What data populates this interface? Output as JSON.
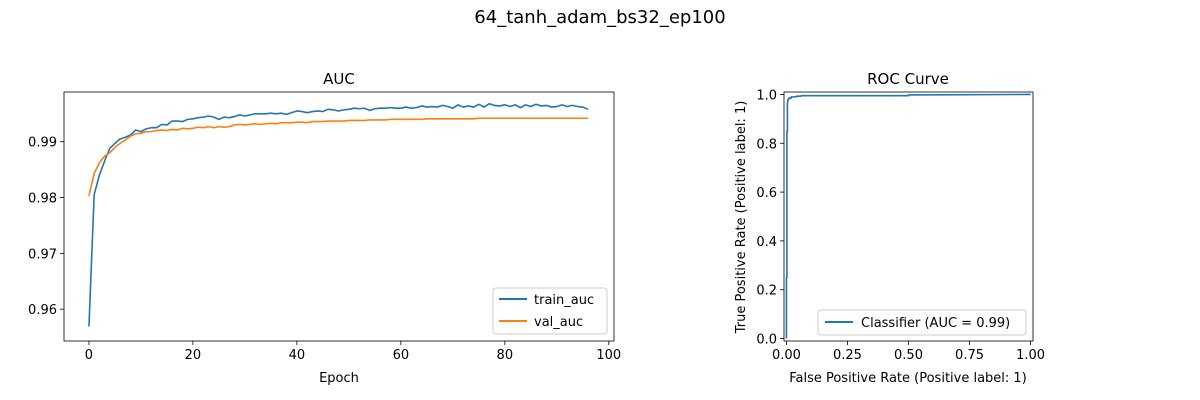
{
  "figure": {
    "suptitle": "64_tanh_adam_bs32_ep100"
  },
  "chart_data": [
    {
      "type": "line",
      "title": "AUC",
      "xlabel": "Epoch",
      "ylabel": "",
      "xlim": [
        -4.8,
        101
      ],
      "ylim": [
        0.9543,
        0.9989
      ],
      "xticks": [
        0,
        20,
        40,
        60,
        80,
        100
      ],
      "yticks": [
        0.96,
        0.97,
        0.98,
        0.99
      ],
      "ytick_labels": [
        "0.96",
        "0.97",
        "0.98",
        "0.99"
      ],
      "grid": false,
      "legend_position": "lower-right",
      "series": [
        {
          "name": "train_auc",
          "color": "#1f77b4",
          "x": [
            0,
            1,
            2,
            3,
            4,
            5,
            6,
            7,
            8,
            9,
            10,
            11,
            12,
            13,
            14,
            15,
            16,
            17,
            18,
            19,
            20,
            21,
            22,
            23,
            24,
            25,
            26,
            27,
            28,
            29,
            30,
            31,
            32,
            33,
            34,
            35,
            36,
            37,
            38,
            39,
            40,
            41,
            42,
            43,
            44,
            45,
            46,
            47,
            48,
            49,
            50,
            51,
            52,
            53,
            54,
            55,
            56,
            57,
            58,
            59,
            60,
            61,
            62,
            63,
            64,
            65,
            66,
            67,
            68,
            69,
            70,
            71,
            72,
            73,
            74,
            75,
            76,
            77,
            78,
            79,
            80,
            81,
            82,
            83,
            84,
            85,
            86,
            87,
            88,
            89,
            90,
            91,
            92,
            93,
            94,
            95,
            96
          ],
          "values": [
            0.9569,
            0.9805,
            0.984,
            0.9865,
            0.9888,
            0.9897,
            0.9905,
            0.9908,
            0.9912,
            0.9921,
            0.9918,
            0.9923,
            0.9925,
            0.9925,
            0.9931,
            0.993,
            0.9937,
            0.9937,
            0.9936,
            0.994,
            0.9941,
            0.9943,
            0.9944,
            0.9946,
            0.9944,
            0.994,
            0.9944,
            0.9943,
            0.9945,
            0.9948,
            0.9946,
            0.9948,
            0.995,
            0.995,
            0.995,
            0.9951,
            0.995,
            0.9951,
            0.9949,
            0.9952,
            0.9955,
            0.9954,
            0.9952,
            0.9954,
            0.9955,
            0.9954,
            0.9958,
            0.9957,
            0.9955,
            0.9957,
            0.9958,
            0.996,
            0.9959,
            0.996,
            0.9956,
            0.9959,
            0.996,
            0.996,
            0.9961,
            0.996,
            0.996,
            0.9962,
            0.996,
            0.9961,
            0.9964,
            0.9962,
            0.9963,
            0.9962,
            0.9965,
            0.9963,
            0.996,
            0.9966,
            0.9962,
            0.9964,
            0.9962,
            0.9967,
            0.9962,
            0.9968,
            0.9965,
            0.9964,
            0.9966,
            0.9963,
            0.9966,
            0.9961,
            0.9966,
            0.9963,
            0.9967,
            0.9964,
            0.9965,
            0.9962,
            0.9963,
            0.9966,
            0.9963,
            0.9965,
            0.9963,
            0.9962,
            0.9958
          ]
        },
        {
          "name": "val_auc",
          "color": "#ff7f0e",
          "x": [
            0,
            1,
            2,
            3,
            4,
            5,
            6,
            7,
            8,
            9,
            10,
            11,
            12,
            13,
            14,
            15,
            16,
            17,
            18,
            19,
            20,
            21,
            22,
            23,
            24,
            25,
            26,
            27,
            28,
            29,
            30,
            31,
            32,
            33,
            34,
            35,
            36,
            37,
            38,
            39,
            40,
            41,
            42,
            43,
            44,
            45,
            46,
            47,
            48,
            49,
            50,
            51,
            52,
            53,
            54,
            55,
            56,
            57,
            58,
            59,
            60,
            61,
            62,
            63,
            64,
            65,
            66,
            67,
            68,
            69,
            70,
            71,
            72,
            73,
            74,
            75,
            76,
            77,
            78,
            79,
            80,
            81,
            82,
            83,
            84,
            85,
            86,
            87,
            88,
            89,
            90,
            91,
            92,
            93,
            94,
            95,
            96
          ],
          "values": [
            0.9803,
            0.9843,
            0.9862,
            0.9874,
            0.988,
            0.989,
            0.9897,
            0.9903,
            0.991,
            0.9914,
            0.9915,
            0.9918,
            0.9918,
            0.992,
            0.9921,
            0.992,
            0.9922,
            0.9921,
            0.9924,
            0.9923,
            0.9924,
            0.9926,
            0.9925,
            0.9927,
            0.9925,
            0.9927,
            0.9926,
            0.9927,
            0.993,
            0.9931,
            0.993,
            0.9931,
            0.9932,
            0.9931,
            0.9932,
            0.9933,
            0.9932,
            0.9934,
            0.9934,
            0.9934,
            0.9935,
            0.9935,
            0.9934,
            0.9936,
            0.9936,
            0.9936,
            0.9937,
            0.9937,
            0.9937,
            0.9937,
            0.9938,
            0.9938,
            0.9938,
            0.9938,
            0.9939,
            0.9939,
            0.9939,
            0.9939,
            0.994,
            0.994,
            0.994,
            0.994,
            0.994,
            0.994,
            0.994,
            0.9941,
            0.9941,
            0.9941,
            0.9941,
            0.9941,
            0.9941,
            0.9941,
            0.9941,
            0.9941,
            0.9941,
            0.9942,
            0.9942,
            0.9942,
            0.9942,
            0.9942,
            0.9942,
            0.9942,
            0.9942,
            0.9942,
            0.9942,
            0.9942,
            0.9942,
            0.9942,
            0.9942,
            0.9942,
            0.9942,
            0.9942,
            0.9942,
            0.9942,
            0.9942,
            0.9942,
            0.9942
          ]
        }
      ]
    },
    {
      "type": "line",
      "title": "ROC Curve",
      "xlabel": "False Positive Rate (Positive label: 1)",
      "ylabel": "True Positive Rate (Positive label: 1)",
      "xlim": [
        -0.01,
        1.01
      ],
      "ylim": [
        -0.01,
        1.01
      ],
      "xticks": [
        0,
        0.25,
        0.5,
        0.75,
        1.0
      ],
      "xtick_labels": [
        "0.00",
        "0.25",
        "0.50",
        "0.75",
        "1.00"
      ],
      "yticks": [
        0,
        0.2,
        0.4,
        0.6,
        0.8,
        1.0
      ],
      "ytick_labels": [
        "0.0",
        "0.2",
        "0.4",
        "0.6",
        "0.8",
        "1.0"
      ],
      "grid": false,
      "legend_position": "lower-right",
      "series": [
        {
          "name": "Classifier (AUC = 0.99)",
          "color": "#1f77b4",
          "x": [
            0.0,
            0.0,
            0.002,
            0.002,
            0.004,
            0.004,
            0.006,
            0.006,
            0.01,
            0.01,
            0.02,
            0.02,
            0.04,
            0.04,
            0.06,
            0.06,
            0.5,
            0.5,
            1.0
          ],
          "values": [
            0.0,
            0.25,
            0.25,
            0.85,
            0.85,
            0.97,
            0.97,
            0.98,
            0.98,
            0.985,
            0.985,
            0.99,
            0.99,
            0.993,
            0.993,
            0.995,
            0.995,
            0.998,
            1.0
          ]
        }
      ]
    }
  ]
}
